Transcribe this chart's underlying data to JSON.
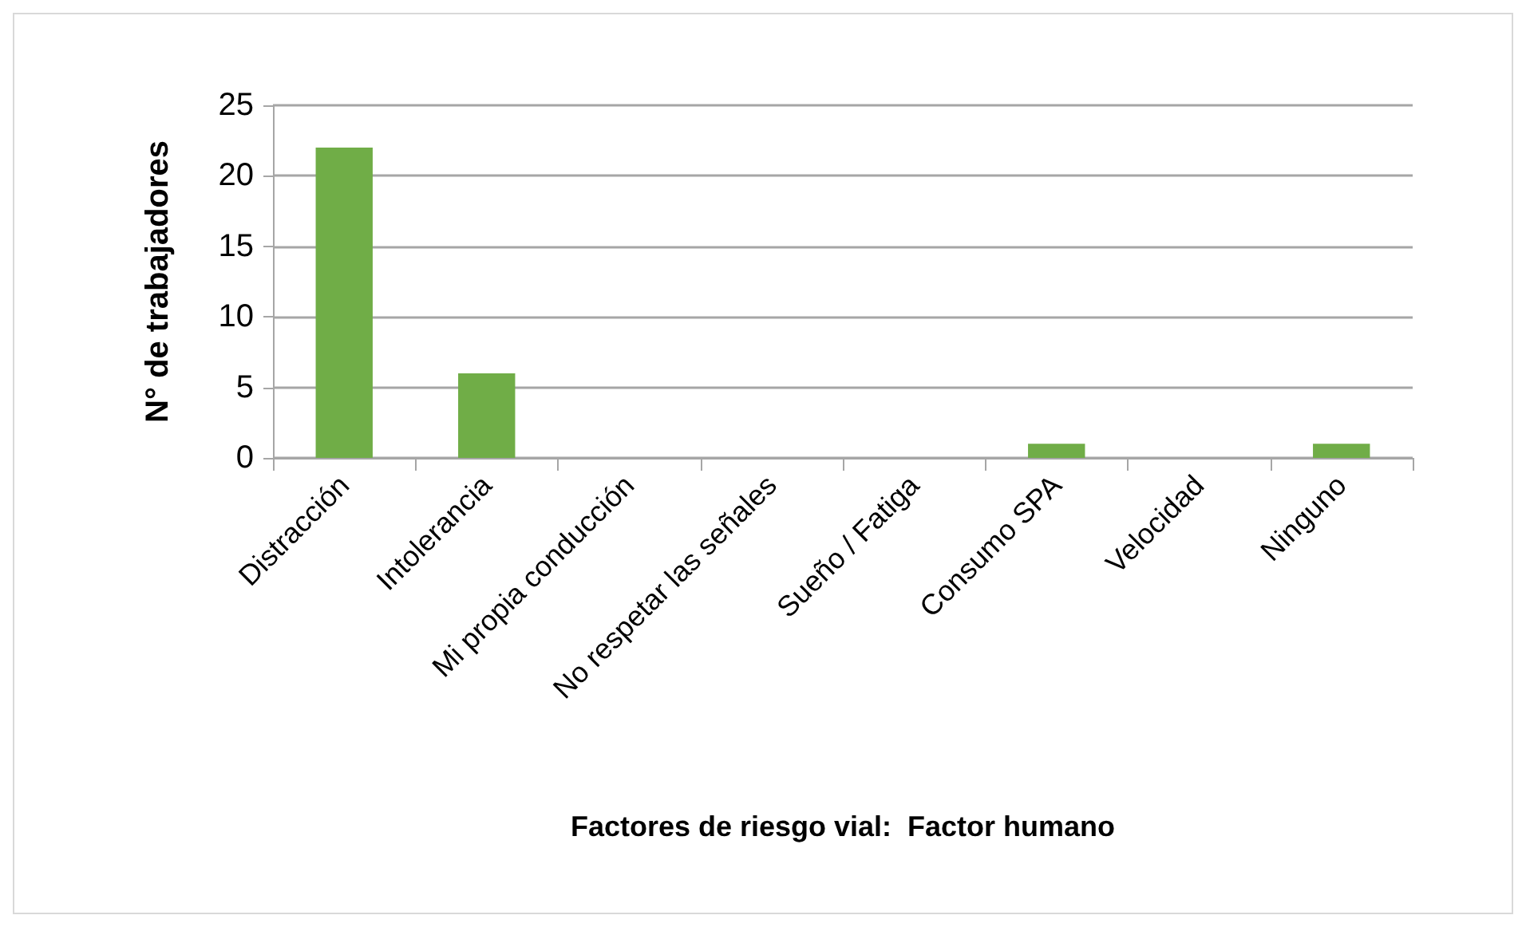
{
  "chart_data": {
    "type": "bar",
    "xlabel": "Factores de riesgo vial:  Factor humano",
    "ylabel": "N° de trabajadores",
    "categories": [
      "Distracción",
      "Intolerancia",
      "Mi propia conducción",
      "No respetar las señales",
      "Sueño / Fatiga",
      "Consumo SPA",
      "Velocidad",
      "Ninguno"
    ],
    "values": [
      22,
      6,
      0,
      0,
      0,
      1,
      0,
      1
    ],
    "color": "#70ad47",
    "ylim": [
      0,
      25
    ],
    "yticks": [
      0,
      5,
      10,
      15,
      20,
      25
    ],
    "grid": "y"
  }
}
